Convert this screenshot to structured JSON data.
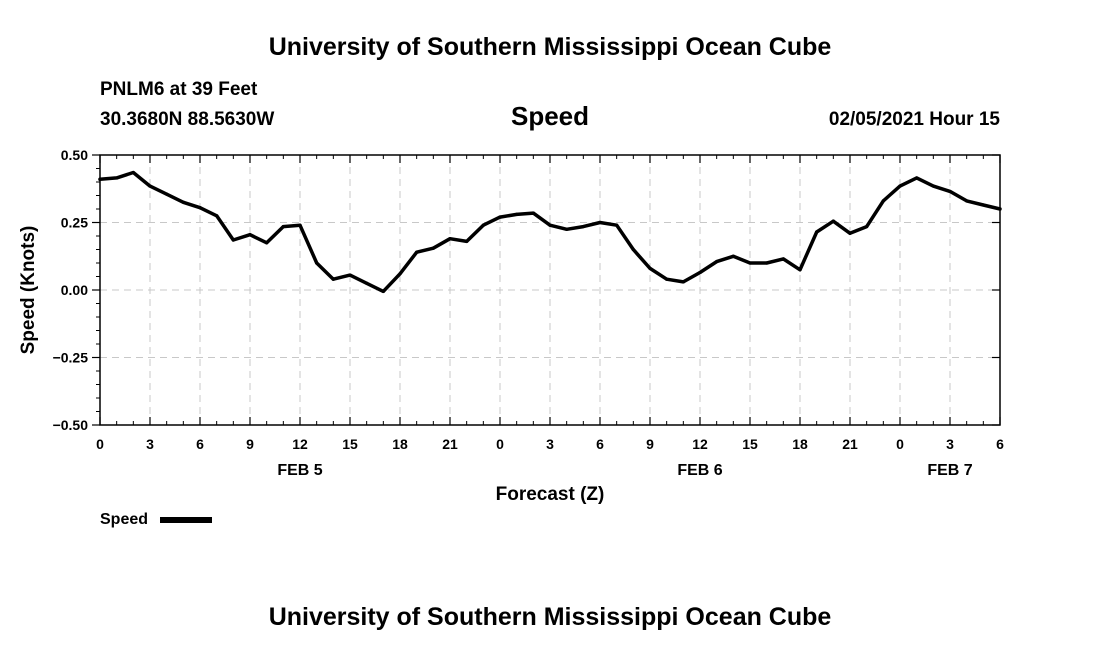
{
  "header": {
    "title": "University of Southern Mississippi Ocean Cube",
    "footer_title": "University of Southern Mississippi Ocean Cube",
    "station": "PNLM6 at 39 Feet",
    "coordinates": "30.3680N 88.5630W",
    "timestamp": "02/05/2021 Hour 15"
  },
  "chart_data": {
    "type": "line",
    "title": "Speed",
    "xlabel": "Forecast (Z)",
    "ylabel": "Speed (Knots)",
    "xlim": [
      0,
      54
    ],
    "ylim": [
      -0.5,
      0.5
    ],
    "x_ticks": [
      {
        "x": 0,
        "label": "0"
      },
      {
        "x": 3,
        "label": "3"
      },
      {
        "x": 6,
        "label": "6"
      },
      {
        "x": 9,
        "label": "9"
      },
      {
        "x": 12,
        "label": "12"
      },
      {
        "x": 15,
        "label": "15"
      },
      {
        "x": 18,
        "label": "18"
      },
      {
        "x": 21,
        "label": "21"
      },
      {
        "x": 24,
        "label": "0"
      },
      {
        "x": 27,
        "label": "3"
      },
      {
        "x": 30,
        "label": "6"
      },
      {
        "x": 33,
        "label": "9"
      },
      {
        "x": 36,
        "label": "12"
      },
      {
        "x": 39,
        "label": "15"
      },
      {
        "x": 42,
        "label": "18"
      },
      {
        "x": 45,
        "label": "21"
      },
      {
        "x": 48,
        "label": "0"
      },
      {
        "x": 51,
        "label": "3"
      },
      {
        "x": 54,
        "label": "6"
      }
    ],
    "y_ticks": [
      {
        "y": 0.5,
        "label": "0.50"
      },
      {
        "y": 0.25,
        "label": "0.25"
      },
      {
        "y": 0.0,
        "label": "0.00"
      },
      {
        "y": -0.25,
        "label": "−0.25"
      },
      {
        "y": -0.5,
        "label": "−0.50"
      }
    ],
    "date_labels": [
      {
        "x": 12,
        "label": "FEB 5"
      },
      {
        "x": 36,
        "label": "FEB 6"
      },
      {
        "x": 51,
        "label": "FEB 7"
      }
    ],
    "grid": true,
    "legend": {
      "label": "Speed",
      "placement": "bottom-left"
    },
    "series": [
      {
        "name": "Speed",
        "color": "#000000",
        "x": [
          0,
          1,
          2,
          3,
          4,
          5,
          6,
          7,
          8,
          9,
          10,
          11,
          12,
          13,
          14,
          15,
          16,
          17,
          18,
          19,
          20,
          21,
          22,
          23,
          24,
          25,
          26,
          27,
          28,
          29,
          30,
          31,
          32,
          33,
          34,
          35,
          36,
          37,
          38,
          39,
          40,
          41,
          42,
          43,
          44,
          45,
          46,
          47,
          48,
          49,
          50,
          51,
          52,
          53,
          54
        ],
        "values": [
          0.41,
          0.415,
          0.435,
          0.385,
          0.355,
          0.325,
          0.305,
          0.275,
          0.185,
          0.205,
          0.175,
          0.235,
          0.24,
          0.1,
          0.04,
          0.055,
          0.025,
          -0.005,
          0.06,
          0.14,
          0.155,
          0.19,
          0.18,
          0.24,
          0.27,
          0.28,
          0.285,
          0.24,
          0.225,
          0.235,
          0.25,
          0.24,
          0.15,
          0.08,
          0.04,
          0.03,
          0.065,
          0.105,
          0.125,
          0.1,
          0.1,
          0.115,
          0.075,
          0.215,
          0.255,
          0.21,
          0.235,
          0.33,
          0.385,
          0.415,
          0.385,
          0.365,
          0.33,
          0.315,
          0.3
        ]
      }
    ]
  }
}
